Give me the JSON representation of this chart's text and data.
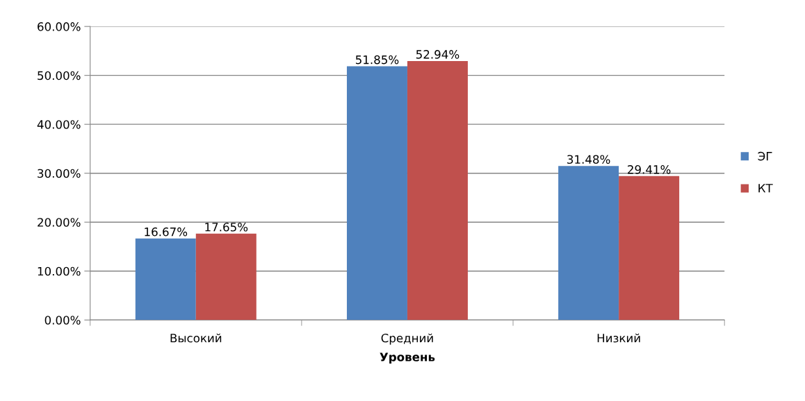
{
  "chart_data": {
    "type": "bar",
    "xlabel": "Уровень",
    "categories": [
      "Высокий",
      "Средний",
      "Низкий"
    ],
    "series": [
      {
        "name": "ЭГ",
        "color": "#4f81bd",
        "values": [
          16.67,
          51.85,
          31.48
        ],
        "value_labels": [
          "16.67%",
          "51.85%",
          "31.48%"
        ]
      },
      {
        "name": "КТ",
        "color": "#c0504d",
        "values": [
          17.65,
          52.94,
          29.41
        ],
        "value_labels": [
          "17.65%",
          "52.94%",
          "29.41%"
        ]
      }
    ],
    "ylim": [
      0,
      60
    ],
    "yticks": [
      {
        "value": 0,
        "label": "0.00%"
      },
      {
        "value": 10,
        "label": "10.00%"
      },
      {
        "value": 20,
        "label": "20.00%"
      },
      {
        "value": 30,
        "label": "30.00%"
      },
      {
        "value": 40,
        "label": "40.00%"
      },
      {
        "value": 50,
        "label": "50.00%"
      },
      {
        "value": 60,
        "label": "60.00%"
      }
    ],
    "grid": "y",
    "legend": "right"
  }
}
